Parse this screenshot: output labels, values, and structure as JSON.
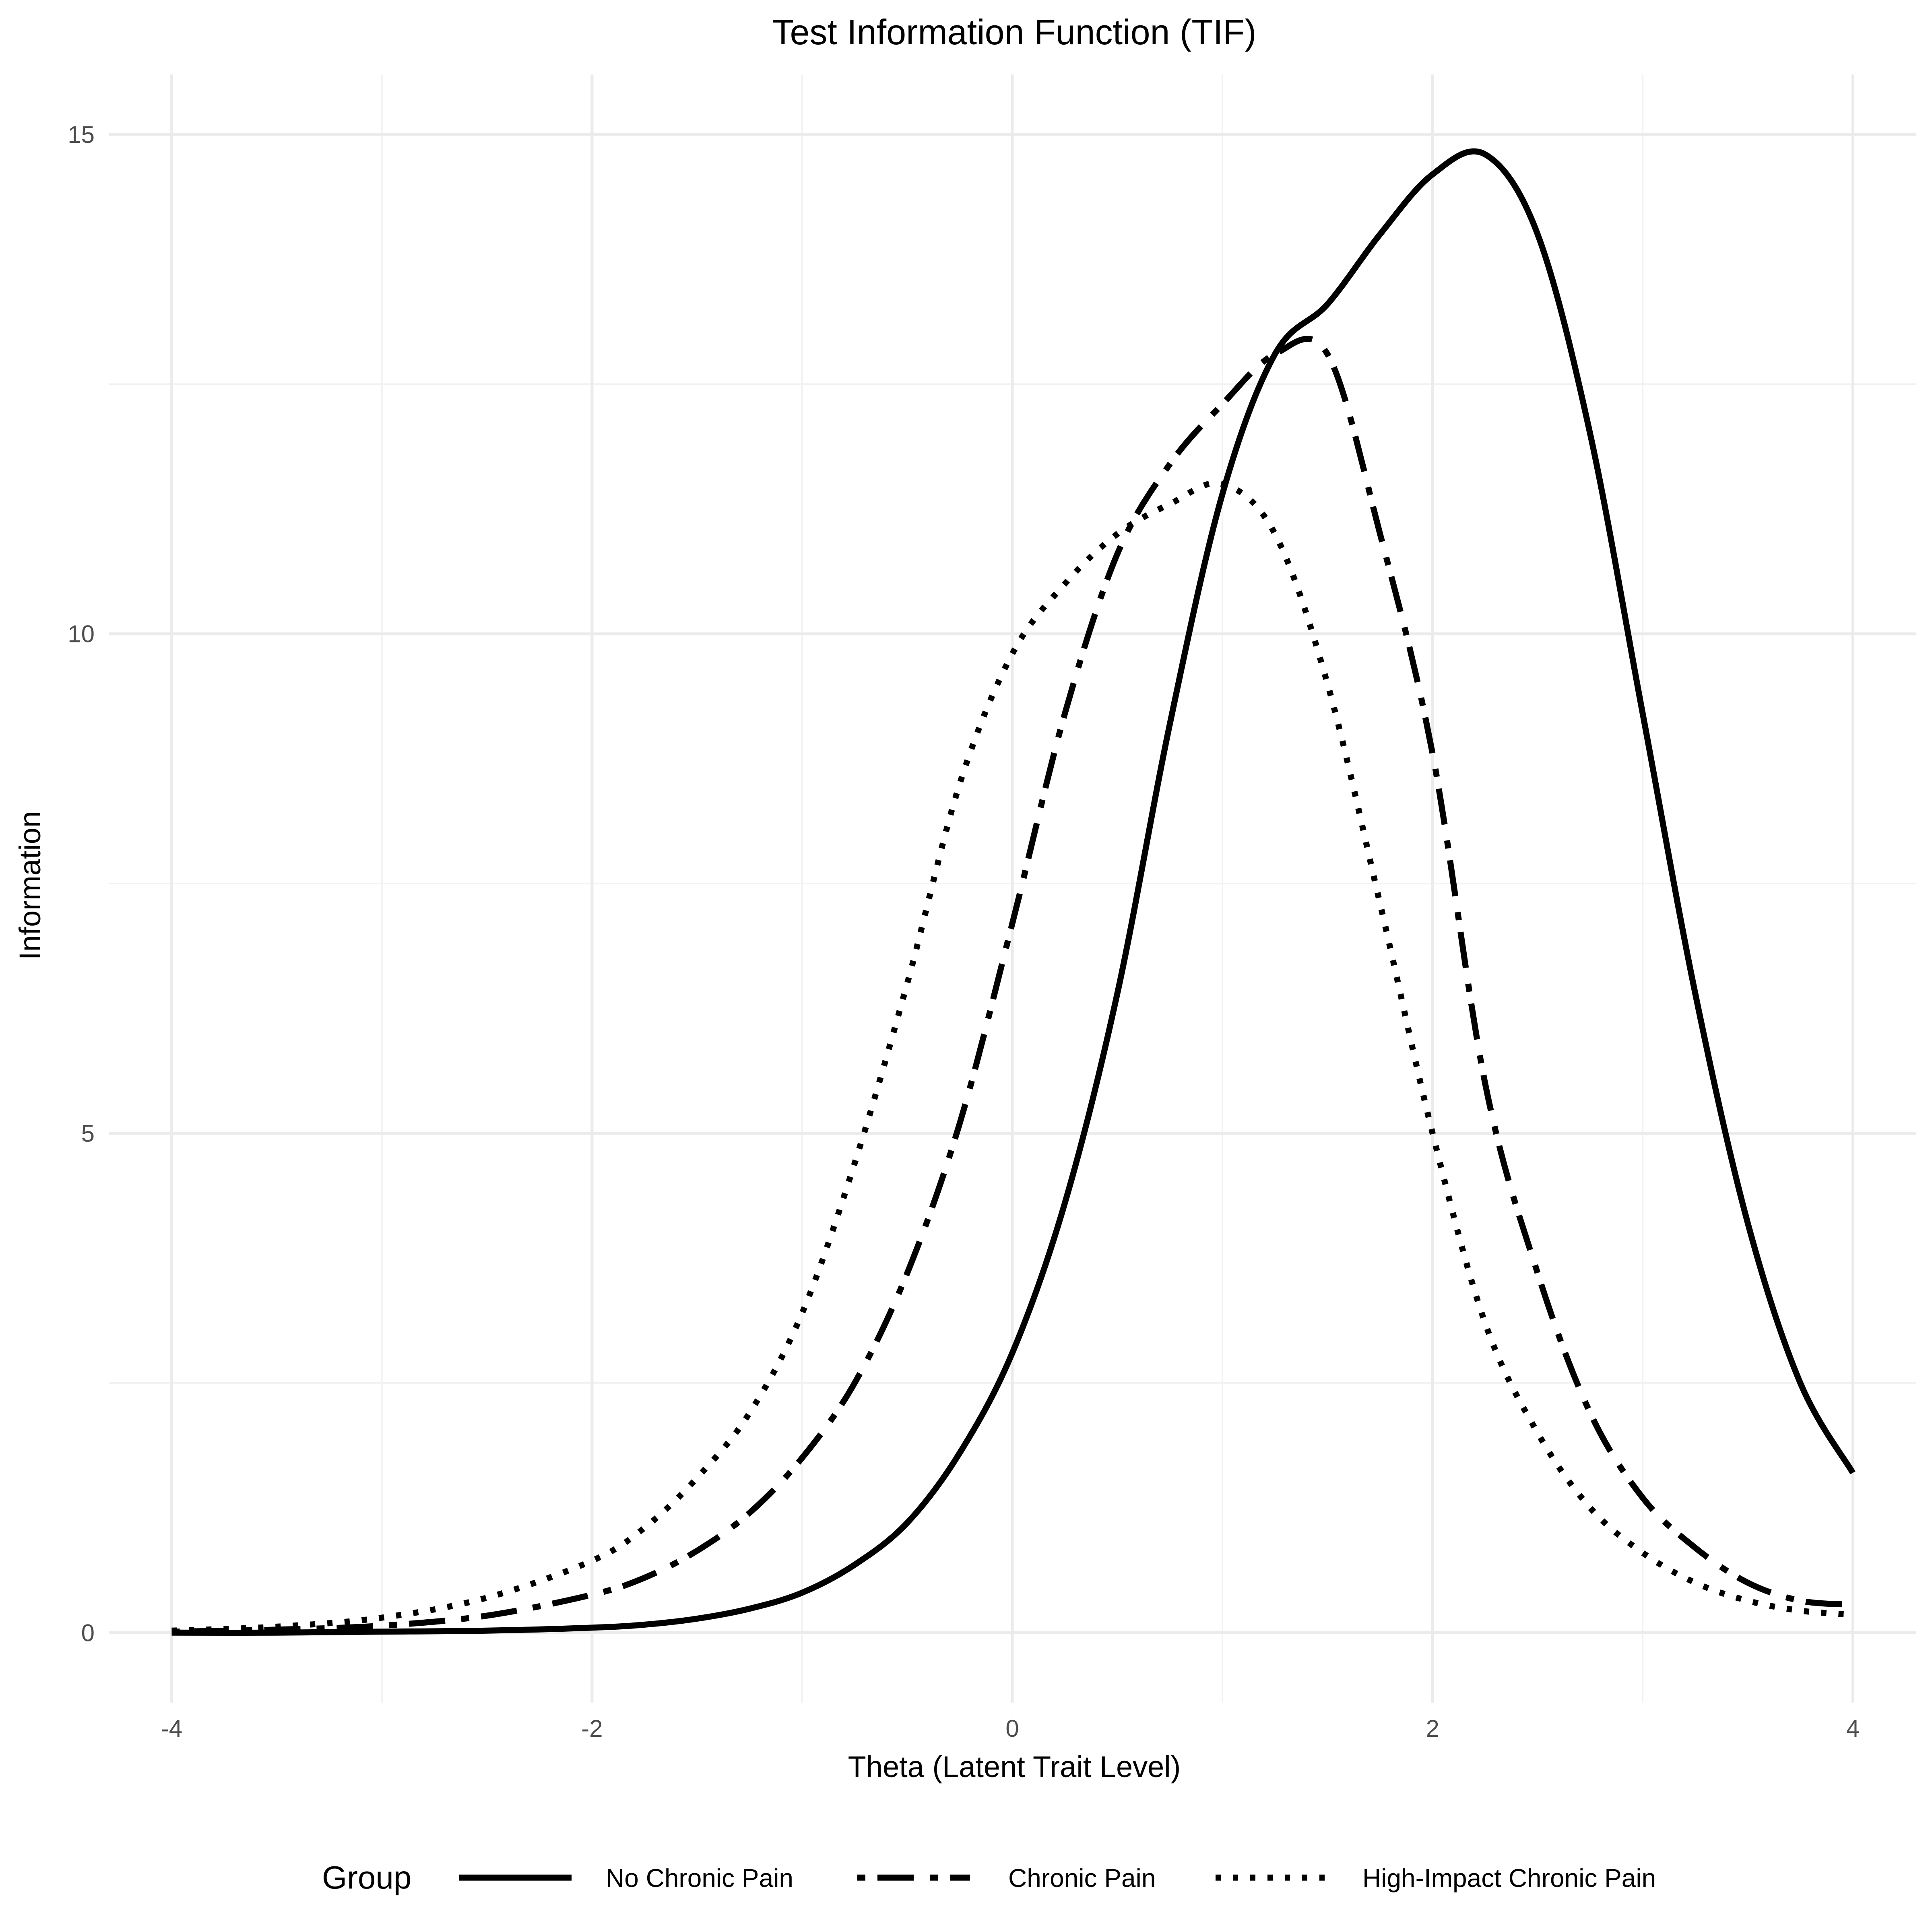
{
  "chart_data": {
    "type": "line",
    "title": "Test Information Function (TIF)",
    "xlabel": "Theta (Latent Trait Level)",
    "ylabel": "Information",
    "xlim": [
      -4.3,
      4.3
    ],
    "ylim": [
      -0.7,
      15.6
    ],
    "xticks": [
      -4,
      -2,
      0,
      2,
      4
    ],
    "xtick_labels": [
      "-4",
      "-2",
      "0",
      "2",
      "4"
    ],
    "yticks": [
      0,
      5,
      10,
      15
    ],
    "ytick_labels": [
      "0",
      "5",
      "10",
      "15"
    ],
    "grid": true,
    "legend": {
      "title": "Group",
      "position": "bottom"
    },
    "series": [
      {
        "name": "No Chronic Pain",
        "line_style": "solid",
        "color": "#000000",
        "x": [
          -4,
          -3.5,
          -3,
          -2.5,
          -2,
          -1.75,
          -1.5,
          -1.25,
          -1,
          -0.75,
          -0.5,
          -0.25,
          0,
          0.25,
          0.5,
          0.75,
          1,
          1.25,
          1.5,
          1.75,
          2,
          2.25,
          2.5,
          2.75,
          3,
          3.25,
          3.5,
          3.75,
          4
        ],
        "y": [
          0,
          0,
          0.01,
          0.02,
          0.05,
          0.08,
          0.14,
          0.24,
          0.4,
          0.68,
          1.1,
          1.8,
          2.8,
          4.3,
          6.4,
          9.1,
          11.4,
          12.8,
          13.3,
          14.0,
          14.6,
          14.8,
          14.0,
          12.0,
          9.2,
          6.4,
          4.1,
          2.5,
          1.6
        ]
      },
      {
        "name": "Chronic Pain",
        "line_style": "dash-dot",
        "color": "#000000",
        "x": [
          -4,
          -3.5,
          -3,
          -2.5,
          -2,
          -1.75,
          -1.5,
          -1.25,
          -1,
          -0.75,
          -0.5,
          -0.25,
          0,
          0.25,
          0.5,
          0.75,
          1,
          1.25,
          1.5,
          1.75,
          2,
          2.25,
          2.5,
          2.75,
          3,
          3.25,
          3.5,
          3.75,
          4
        ],
        "y": [
          0.01,
          0.03,
          0.07,
          0.17,
          0.38,
          0.55,
          0.82,
          1.2,
          1.75,
          2.5,
          3.6,
          5.1,
          7.1,
          9.2,
          10.8,
          11.7,
          12.3,
          12.8,
          12.8,
          11.0,
          8.8,
          5.5,
          3.6,
          2.2,
          1.35,
          0.85,
          0.5,
          0.32,
          0.28
        ]
      },
      {
        "name": "High-Impact Chronic Pain",
        "line_style": "dotted",
        "color": "#000000",
        "x": [
          -4,
          -3.5,
          -3,
          -2.5,
          -2,
          -1.75,
          -1.5,
          -1.25,
          -1,
          -0.75,
          -0.5,
          -0.25,
          0,
          0.25,
          0.5,
          0.75,
          1,
          1.25,
          1.5,
          1.75,
          2,
          2.25,
          2.5,
          2.75,
          3,
          3.25,
          3.5,
          3.75,
          4
        ],
        "y": [
          0.02,
          0.06,
          0.15,
          0.35,
          0.72,
          1.05,
          1.55,
          2.2,
          3.2,
          4.7,
          6.5,
          8.5,
          9.8,
          10.5,
          11.0,
          11.3,
          11.5,
          11.0,
          9.5,
          7.3,
          5.0,
          3.1,
          2.0,
          1.25,
          0.8,
          0.5,
          0.32,
          0.22,
          0.18
        ]
      }
    ]
  }
}
